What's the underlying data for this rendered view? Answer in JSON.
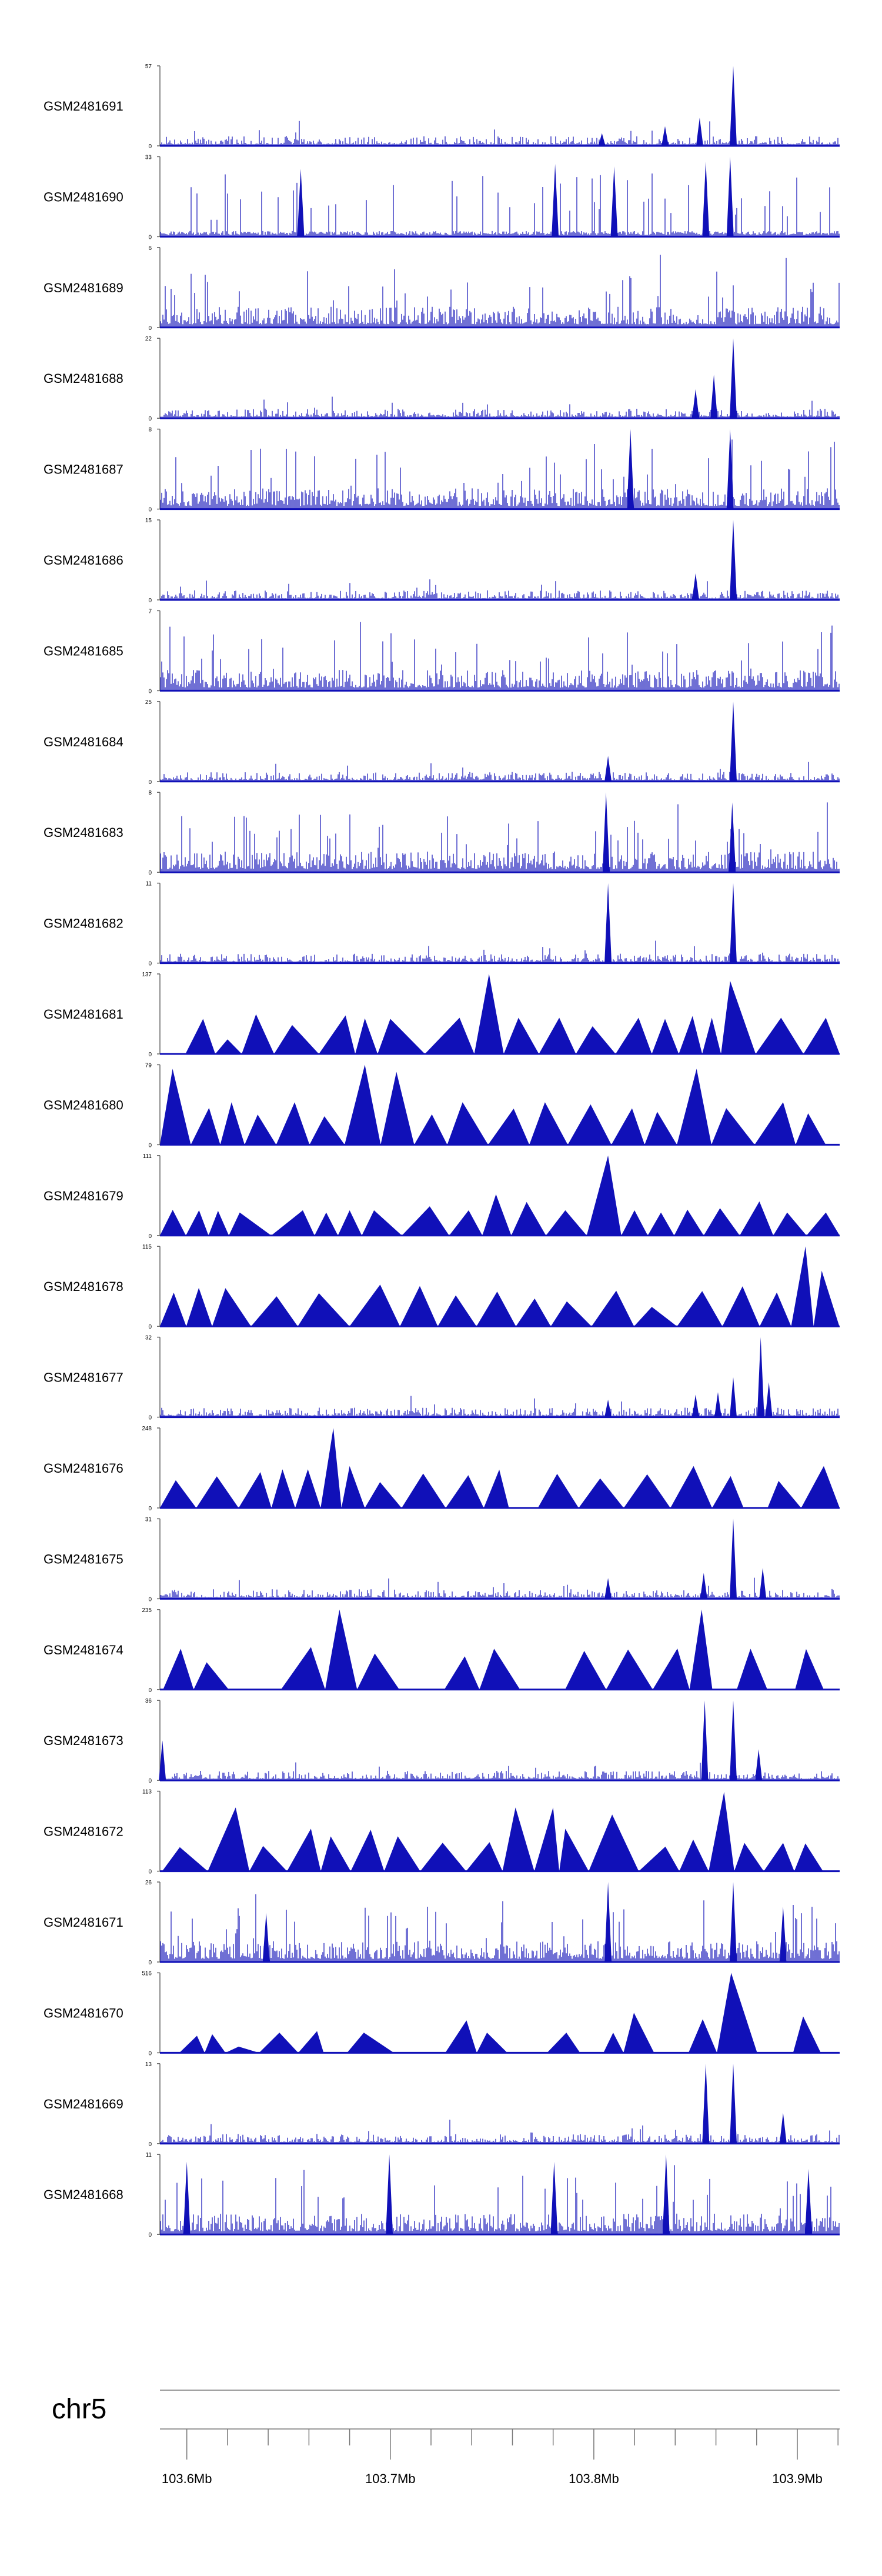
{
  "chart_data": {
    "type": "area",
    "chromosome": "chr5",
    "xlim": [
      103.5868,
      103.9208
    ],
    "x_ticks": [
      103.6,
      103.7,
      103.8,
      103.9
    ],
    "x_tick_labels": [
      "103.6Mb",
      "103.7Mb",
      "103.8Mb",
      "103.9Mb"
    ],
    "minor_tick_step": 0.02,
    "color": "#1010b8",
    "series": [
      {
        "name": "GSM2481691",
        "ylim": [
          0,
          57
        ],
        "style": "dense",
        "peaks": [
          [
            103.804,
            9
          ],
          [
            103.835,
            14
          ],
          [
            103.852,
            20
          ],
          [
            103.8685,
            57
          ]
        ]
      },
      {
        "name": "GSM2481690",
        "ylim": [
          0,
          33
        ],
        "style": "spiky",
        "peaks": [
          [
            103.656,
            28
          ],
          [
            103.781,
            30
          ],
          [
            103.81,
            29
          ],
          [
            103.855,
            31
          ],
          [
            103.867,
            33
          ]
        ]
      },
      {
        "name": "GSM2481689",
        "ylim": [
          0,
          6
        ],
        "style": "sparse",
        "peaks": []
      },
      {
        "name": "GSM2481688",
        "ylim": [
          0,
          22
        ],
        "style": "dense",
        "peaks": [
          [
            103.85,
            8
          ],
          [
            103.859,
            12
          ],
          [
            103.8685,
            22
          ]
        ]
      },
      {
        "name": "GSM2481687",
        "ylim": [
          0,
          8
        ],
        "style": "sparse",
        "peaks": [
          [
            103.818,
            8
          ],
          [
            103.867,
            8
          ]
        ]
      },
      {
        "name": "GSM2481686",
        "ylim": [
          0,
          15
        ],
        "style": "dense",
        "peaks": [
          [
            103.85,
            5
          ],
          [
            103.8685,
            15
          ]
        ]
      },
      {
        "name": "GSM2481685",
        "ylim": [
          0,
          7
        ],
        "style": "sparse",
        "peaks": []
      },
      {
        "name": "GSM2481684",
        "ylim": [
          0,
          25
        ],
        "style": "dense",
        "peaks": [
          [
            103.807,
            8
          ],
          [
            103.8685,
            25
          ]
        ]
      },
      {
        "name": "GSM2481683",
        "ylim": [
          0,
          8
        ],
        "style": "sparse",
        "peaks": [
          [
            103.806,
            8
          ],
          [
            103.868,
            7
          ]
        ]
      },
      {
        "name": "GSM2481682",
        "ylim": [
          0,
          11
        ],
        "style": "dense",
        "peaks": [
          [
            103.807,
            11
          ],
          [
            103.8685,
            11
          ]
        ]
      },
      {
        "name": "GSM2481681",
        "ylim": [
          0,
          137
        ],
        "style": "triangles",
        "peaks": [
          [
            103.608,
            60
          ],
          [
            103.62,
            25
          ],
          [
            103.634,
            68
          ],
          [
            103.678,
            66
          ],
          [
            103.7,
            60
          ],
          [
            103.734,
            62
          ],
          [
            103.7485,
            137
          ],
          [
            103.763,
            62
          ],
          [
            103.783,
            62
          ],
          [
            103.822,
            62
          ],
          [
            103.835,
            60
          ],
          [
            103.8485,
            65
          ],
          [
            103.858,
            62
          ],
          [
            103.867,
            125
          ],
          [
            103.892,
            62
          ],
          [
            103.914,
            62
          ]
        ]
      },
      {
        "name": "GSM2481680",
        "ylim": [
          0,
          79
        ],
        "style": "triangles",
        "peaks": [
          [
            103.593,
            75
          ],
          [
            103.622,
            42
          ],
          [
            103.653,
            42
          ],
          [
            103.6875,
            79
          ],
          [
            103.703,
            72
          ],
          [
            103.7355,
            42
          ],
          [
            103.776,
            42
          ],
          [
            103.8505,
            75
          ],
          [
            103.893,
            42
          ]
        ]
      },
      {
        "name": "GSM2481679",
        "ylim": [
          0,
          111
        ],
        "style": "triangles",
        "peaks": [
          [
            103.606,
            35
          ],
          [
            103.626,
            32
          ],
          [
            103.657,
            35
          ],
          [
            103.6685,
            32
          ],
          [
            103.68,
            35
          ],
          [
            103.692,
            35
          ],
          [
            103.7385,
            35
          ],
          [
            103.786,
            35
          ],
          [
            103.807,
            111
          ],
          [
            103.82,
            35
          ],
          [
            103.833,
            32
          ],
          [
            103.846,
            36
          ],
          [
            103.862,
            38
          ],
          [
            103.895,
            32
          ],
          [
            103.914,
            32
          ]
        ]
      },
      {
        "name": "GSM2481678",
        "ylim": [
          0,
          115
        ],
        "style": "triangles",
        "peaks": [
          [
            103.619,
            55
          ],
          [
            103.695,
            60
          ],
          [
            103.7145,
            58
          ],
          [
            103.7525,
            50
          ],
          [
            103.8285,
            28
          ],
          [
            103.904,
            115
          ],
          [
            103.912,
            80
          ]
        ]
      },
      {
        "name": "GSM2481677",
        "ylim": [
          0,
          32
        ],
        "style": "dense",
        "peaks": [
          [
            103.807,
            7
          ],
          [
            103.85,
            9
          ],
          [
            103.861,
            10
          ],
          [
            103.8685,
            16
          ],
          [
            103.882,
            32
          ],
          [
            103.886,
            14
          ]
        ]
      },
      {
        "name": "GSM2481676",
        "ylim": [
          0,
          248
        ],
        "style": "triangles",
        "peaks": [
          [
            103.647,
            120
          ],
          [
            103.6595,
            120
          ],
          [
            103.672,
            248
          ],
          [
            103.68,
            130
          ],
          [
            103.763,
            0
          ],
          [
            103.849,
            130
          ],
          [
            103.88,
            0
          ],
          [
            103.913,
            130
          ]
        ]
      },
      {
        "name": "GSM2481675",
        "ylim": [
          0,
          31
        ],
        "style": "dense",
        "peaks": [
          [
            103.807,
            8
          ],
          [
            103.854,
            10
          ],
          [
            103.8685,
            31
          ],
          [
            103.883,
            12
          ]
        ]
      },
      {
        "name": "GSM2481674",
        "ylim": [
          0,
          235
        ],
        "style": "triangles",
        "peaks": [
          [
            103.597,
            120
          ],
          [
            103.6315,
            0
          ],
          [
            103.661,
            125
          ],
          [
            103.675,
            235
          ],
          [
            103.7165,
            0
          ],
          [
            103.751,
            120
          ],
          [
            103.7765,
            0
          ],
          [
            103.853,
            235
          ],
          [
            103.8635,
            0
          ],
          [
            103.877,
            120
          ],
          [
            103.8935,
            0
          ]
        ]
      },
      {
        "name": "GSM2481673",
        "ylim": [
          0,
          36
        ],
        "style": "dense",
        "peaks": [
          [
            103.588,
            18
          ],
          [
            103.8545,
            36
          ],
          [
            103.8685,
            36
          ],
          [
            103.881,
            14
          ]
        ]
      },
      {
        "name": "GSM2481672",
        "ylim": [
          0,
          113
        ],
        "style": "triangles",
        "peaks": [
          [
            103.624,
            90
          ],
          [
            103.661,
            60
          ],
          [
            103.7615,
            90
          ],
          [
            103.78,
            90
          ],
          [
            103.786,
            60
          ],
          [
            103.809,
            80
          ],
          [
            103.864,
            112
          ],
          [
            103.874,
            40
          ],
          [
            103.893,
            40
          ]
        ]
      },
      {
        "name": "GSM2481671",
        "ylim": [
          0,
          26
        ],
        "style": "sparse",
        "peaks": [
          [
            103.639,
            16
          ],
          [
            103.807,
            26
          ],
          [
            103.8685,
            26
          ],
          [
            103.893,
            18
          ]
        ]
      },
      {
        "name": "GSM2481670",
        "ylim": [
          0,
          516
        ],
        "style": "triangles",
        "peaks": [
          [
            103.605,
            110
          ],
          [
            103.6125,
            120
          ],
          [
            103.6255,
            40
          ],
          [
            103.6455,
            130
          ],
          [
            103.664,
            140
          ],
          [
            103.6705,
            0
          ],
          [
            103.687,
            130
          ],
          [
            103.7165,
            0
          ],
          [
            103.7475,
            130
          ],
          [
            103.7675,
            0
          ],
          [
            103.7865,
            130
          ],
          [
            103.8,
            0
          ],
          [
            103.8095,
            130
          ],
          [
            103.8395,
            0
          ],
          [
            103.8675,
            516
          ],
          [
            103.893,
            0
          ]
        ]
      },
      {
        "name": "GSM2481669",
        "ylim": [
          0,
          13
        ],
        "style": "dense",
        "peaks": [
          [
            103.855,
            13
          ],
          [
            103.8685,
            13
          ],
          [
            103.893,
            5
          ]
        ]
      },
      {
        "name": "GSM2481668",
        "ylim": [
          0,
          11
        ],
        "style": "sparse",
        "peaks": [
          [
            103.6,
            10
          ],
          [
            103.6995,
            11
          ],
          [
            103.7805,
            10
          ],
          [
            103.8355,
            11
          ],
          [
            103.9055,
            9
          ]
        ]
      }
    ]
  }
}
